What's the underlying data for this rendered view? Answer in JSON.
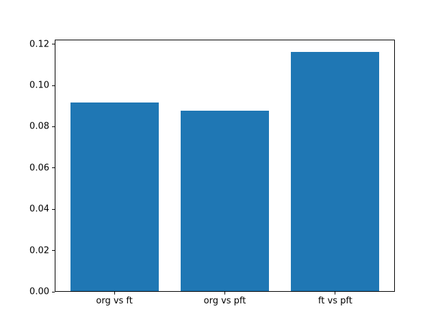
{
  "chart_data": {
    "type": "bar",
    "categories": [
      "org vs ft",
      "org vs pft",
      "ft vs pft"
    ],
    "values": [
      0.0916,
      0.0878,
      0.1163
    ],
    "title": "",
    "xlabel": "",
    "ylabel": "",
    "ylim": [
      0,
      0.1222
    ],
    "yticks": [
      "0.00",
      "0.02",
      "0.04",
      "0.06",
      "0.08",
      "0.10",
      "0.12"
    ],
    "ytick_values": [
      0.0,
      0.02,
      0.04,
      0.06,
      0.08,
      0.1,
      0.12
    ],
    "bar_color": "#1f77b4",
    "axis_color": "#000000",
    "background_color": "#ffffff",
    "grid": false,
    "legend": null
  }
}
